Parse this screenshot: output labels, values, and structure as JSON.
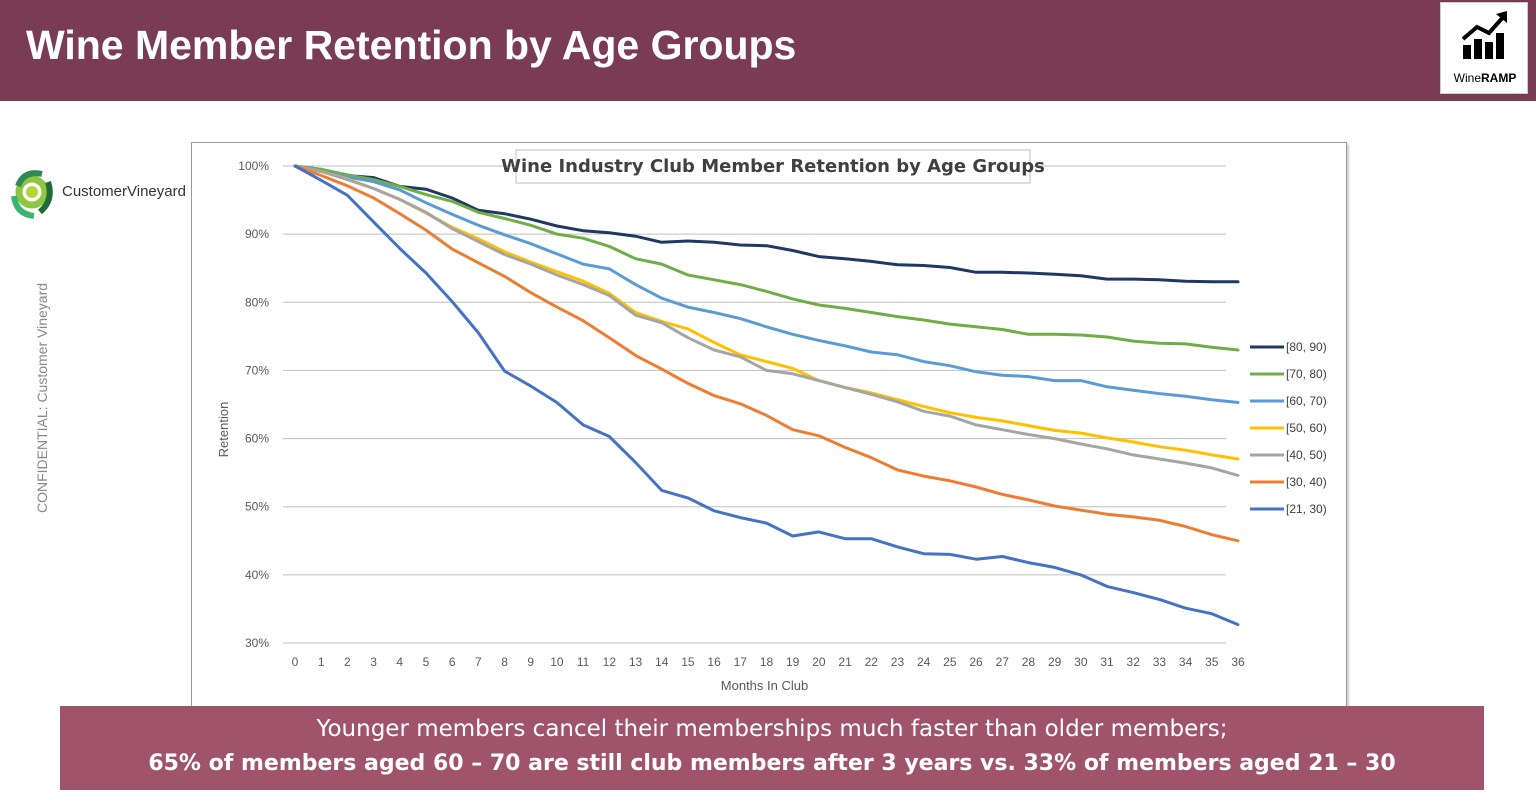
{
  "header": {
    "title": "Wine Member Retention by Age Groups"
  },
  "brand_logo": {
    "name_regular": "Wine",
    "name_bold": "RAMP",
    "icon": "rising-chart-icon"
  },
  "customer_logo": {
    "text": "CustomerVineyard",
    "icon": "vineyard-swirl-icon"
  },
  "confidential_label": "CONFIDENTIAL: Customer Vineyard",
  "banner": {
    "line1": "Younger members cancel their memberships much faster than older members;",
    "line2": "65% of members aged 60 – 70 are still club members after 3 years vs. 33% of members aged 21 – 30"
  },
  "chart_data": {
    "type": "line",
    "title": "Wine Industry Club Member Retention by Age Groups",
    "xlabel": "Months In Club",
    "ylabel": "Retention",
    "x": [
      0,
      1,
      2,
      3,
      4,
      5,
      6,
      7,
      8,
      9,
      10,
      11,
      12,
      13,
      14,
      15,
      16,
      17,
      18,
      19,
      20,
      21,
      22,
      23,
      24,
      25,
      26,
      27,
      28,
      29,
      30,
      31,
      32,
      33,
      34,
      35,
      36
    ],
    "ylim": [
      30,
      100
    ],
    "yticks": [
      100,
      90,
      80,
      70,
      60,
      50,
      40,
      30
    ],
    "ytick_labels": [
      "100%",
      "90%",
      "80%",
      "70%",
      "60%",
      "50%",
      "40%",
      "30%"
    ],
    "grid": "horizontal",
    "legend_position": "right",
    "series": [
      {
        "name": "[80, 90)",
        "color": "#203864",
        "values": [
          100,
          99.5,
          98.6,
          98.3,
          97,
          96.6,
          95.3,
          93.5,
          93,
          92.2,
          91.2,
          90.5,
          90.2,
          89.7,
          88.8,
          89,
          88.8,
          88.4,
          88.3,
          87.6,
          86.7,
          86.4,
          86,
          85.5,
          85.4,
          85.1,
          84.4,
          84.4,
          84.3,
          84.1,
          83.9,
          83.4,
          83.4,
          83.3,
          83.1,
          83,
          83
        ]
      },
      {
        "name": "[70, 80)",
        "color": "#70ad47",
        "values": [
          100,
          99.5,
          98.7,
          98,
          97,
          95.8,
          94.8,
          93.2,
          92.3,
          91.3,
          90,
          89.4,
          88.2,
          86.4,
          85.6,
          84,
          83.3,
          82.6,
          81.6,
          80.5,
          79.6,
          79.1,
          78.5,
          77.9,
          77.4,
          76.8,
          76.4,
          76,
          75.3,
          75.3,
          75.2,
          74.9,
          74.3,
          74,
          73.9,
          73.4,
          73
        ]
      },
      {
        "name": "[60, 70)",
        "color": "#5b9bd5",
        "values": [
          100,
          99.2,
          98.4,
          97.7,
          96.5,
          94.6,
          92.9,
          91.3,
          89.9,
          88.6,
          87.1,
          85.6,
          84.9,
          82.6,
          80.6,
          79.3,
          78.5,
          77.6,
          76.4,
          75.3,
          74.4,
          73.6,
          72.7,
          72.3,
          71.3,
          70.7,
          69.8,
          69.3,
          69.1,
          68.5,
          68.5,
          67.6,
          67.1,
          66.6,
          66.2,
          65.7,
          65.3
        ]
      },
      {
        "name": "[50, 60)",
        "color": "#ffc000",
        "values": [
          100,
          99.2,
          98.1,
          96.7,
          95.1,
          93.1,
          91,
          89.3,
          87.4,
          85.9,
          84.5,
          83.1,
          81.3,
          78.5,
          77.2,
          76.1,
          74.1,
          72.3,
          71.3,
          70.3,
          68.5,
          67.5,
          66.7,
          65.7,
          64.7,
          63.8,
          63.1,
          62.6,
          61.9,
          61.2,
          60.8,
          60.1,
          59.5,
          58.8,
          58.3,
          57.6,
          57
        ]
      },
      {
        "name": "[40, 50)",
        "color": "#a5a5a5",
        "values": [
          100,
          99.2,
          98,
          96.7,
          95.1,
          93.2,
          90.8,
          88.9,
          87,
          85.6,
          84,
          82.6,
          81,
          78.1,
          77,
          74.8,
          73,
          72,
          70,
          69.5,
          68.5,
          67.5,
          66.5,
          65.4,
          64,
          63.3,
          62,
          61.3,
          60.6,
          60,
          59.2,
          58.5,
          57.6,
          57,
          56.4,
          55.7,
          54.6
        ]
      },
      {
        "name": "[30, 40)",
        "color": "#ed7d31",
        "values": [
          100,
          98.6,
          97.1,
          95.3,
          93,
          90.6,
          87.8,
          85.8,
          83.8,
          81.4,
          79.3,
          77.3,
          74.8,
          72.2,
          70.2,
          68.1,
          66.3,
          65.1,
          63.4,
          61.3,
          60.4,
          58.7,
          57.2,
          55.4,
          54.5,
          53.8,
          52.9,
          51.8,
          51,
          50.1,
          49.5,
          48.9,
          48.5,
          48,
          47.1,
          45.9,
          45
        ]
      },
      {
        "name": "[21, 30)",
        "color": "#4472c4",
        "values": [
          100,
          97.9,
          95.7,
          91.8,
          87.9,
          84.3,
          80.1,
          75.5,
          69.9,
          67.7,
          65.3,
          62,
          60.3,
          56.5,
          52.4,
          51.3,
          49.4,
          48.4,
          47.6,
          45.7,
          46.3,
          45.3,
          45.3,
          44.1,
          43.1,
          43,
          42.3,
          42.7,
          41.8,
          41.1,
          40,
          38.3,
          37.4,
          36.4,
          35.1,
          34.3,
          32.7
        ]
      }
    ]
  }
}
